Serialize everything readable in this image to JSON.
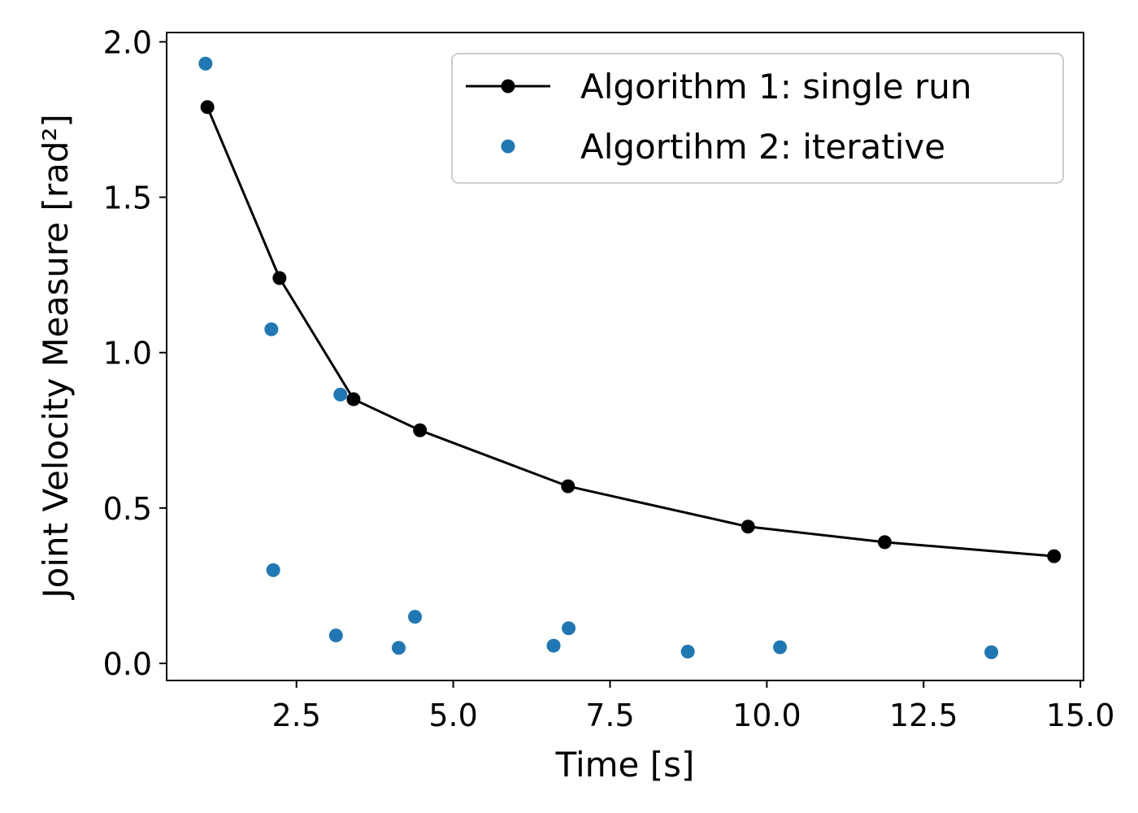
{
  "chart_data": {
    "type": "line",
    "xlabel": "Time [s]",
    "ylabel": "Joint Velocity Measure [rad²]",
    "xlim": [
      0.43,
      15.05
    ],
    "ylim": [
      -0.055,
      2.03
    ],
    "xticks": [
      2.5,
      5.0,
      7.5,
      10.0,
      12.5,
      15.0
    ],
    "xtick_labels": [
      "2.5",
      "5.0",
      "7.5",
      "10.0",
      "12.5",
      "15.0"
    ],
    "yticks": [
      0.0,
      0.5,
      1.0,
      1.5,
      2.0
    ],
    "ytick_labels": [
      "0.0",
      "0.5",
      "1.0",
      "1.5",
      "2.0"
    ],
    "grid": false,
    "legend_position": "top-right",
    "series": [
      {
        "name": "Algorithm 1: single run",
        "style": "line-marker",
        "color": "#000000",
        "x": [
          1.08,
          2.23,
          3.41,
          4.47,
          6.83,
          9.7,
          11.88,
          14.58
        ],
        "y": [
          1.79,
          1.24,
          0.85,
          0.75,
          0.57,
          0.44,
          0.39,
          0.345
        ]
      },
      {
        "name": "Algortihm 2: iterative",
        "style": "marker",
        "color": "#1f77b4",
        "x": [
          1.05,
          2.1,
          3.2,
          2.13,
          3.13,
          4.13,
          4.39,
          6.6,
          6.84,
          8.74,
          10.21,
          13.58
        ],
        "y": [
          1.93,
          1.075,
          0.865,
          0.3,
          0.09,
          0.05,
          0.15,
          0.057,
          0.113,
          0.038,
          0.052,
          0.036
        ]
      }
    ]
  }
}
